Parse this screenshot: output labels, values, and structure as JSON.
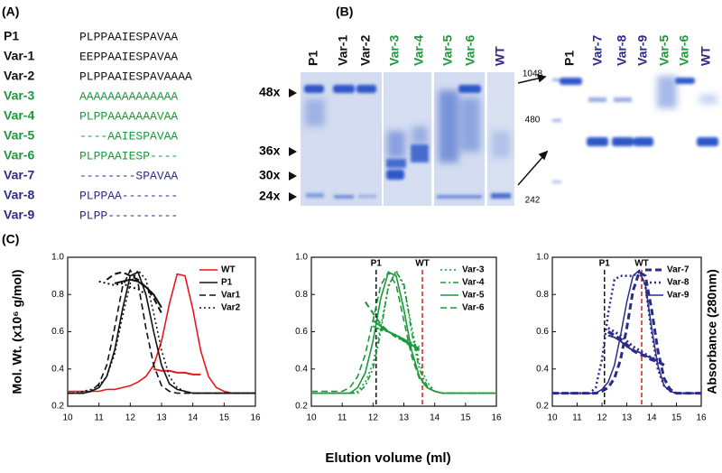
{
  "panel_a": {
    "label": "(A)",
    "rows": [
      {
        "name": "P1",
        "sequence": "PLPPAAIESPAVAA",
        "color": "#111111"
      },
      {
        "name": "Var-1",
        "sequence": "EEPPAAIESPAVAA",
        "color": "#111111"
      },
      {
        "name": "Var-2",
        "sequence": "PLPPAAIESPAVAAAA",
        "color": "#111111"
      },
      {
        "name": "Var-3",
        "sequence": "AAAAAAAAAAAAAA",
        "color": "#1a9a3a"
      },
      {
        "name": "Var-4",
        "sequence": "PLPPAAAAAAAVAA",
        "color": "#1a9a3a"
      },
      {
        "name": "Var-5",
        "sequence": "----AAIESPAVAA",
        "color": "#1a9a3a"
      },
      {
        "name": "Var-6",
        "sequence": "PLPPAAIESP----",
        "color": "#1a9a3a"
      },
      {
        "name": "Var-7",
        "sequence": "--------SPAVAA",
        "color": "#2b2b8c"
      },
      {
        "name": "Var-8",
        "sequence": "PLPPAA--------",
        "color": "#2b2b8c"
      },
      {
        "name": "Var-9",
        "sequence": "PLPP----------",
        "color": "#2b2b8c"
      }
    ]
  },
  "panel_b": {
    "label": "(B)",
    "left_lanes": [
      {
        "name": "P1",
        "color": "#111111"
      },
      {
        "name": "Var-1",
        "color": "#111111"
      },
      {
        "name": "Var-2",
        "color": "#111111"
      },
      {
        "name": "Var-3",
        "color": "#1a9a3a"
      },
      {
        "name": "Var-4",
        "color": "#1a9a3a"
      },
      {
        "name": "Var-5",
        "color": "#1a9a3a"
      },
      {
        "name": "Var-6",
        "color": "#1a9a3a"
      },
      {
        "name": "WT",
        "color": "#2b2b8c"
      }
    ],
    "right_lanes": [
      {
        "name": "P1",
        "color": "#111111"
      },
      {
        "name": "Var-7",
        "color": "#2b2b8c"
      },
      {
        "name": "Var-8",
        "color": "#2b2b8c"
      },
      {
        "name": "Var-9",
        "color": "#2b2b8c"
      },
      {
        "name": "Var-5",
        "color": "#1a9a3a"
      },
      {
        "name": "Var-6",
        "color": "#1a9a3a"
      },
      {
        "name": "WT",
        "color": "#2b2b8c"
      }
    ],
    "size_markers": [
      "48x",
      "36x",
      "30x",
      "24x"
    ],
    "ladder": [
      1048,
      480,
      242
    ]
  },
  "panel_c": {
    "label": "(C)",
    "y_label": "Mol. Wt. (x10⁶ g/mol)",
    "y2_label": "Absorbance (280nm)",
    "x_label": "Elution volume (ml)"
  },
  "chart_data": [
    {
      "type": "line",
      "x": [
        10,
        10.25,
        10.5,
        10.75,
        11,
        11.25,
        11.5,
        11.75,
        12,
        12.25,
        12.5,
        12.75,
        13,
        13.25,
        13.5,
        13.75,
        14,
        14.25,
        14.5,
        14.75,
        15,
        15.25,
        15.5,
        15.75,
        16
      ],
      "xlim": [
        10,
        16
      ],
      "xticks": [
        10,
        11,
        12,
        13,
        14,
        15,
        16
      ],
      "ylim": [
        0.2,
        1.0
      ],
      "yticks": [
        0.2,
        0.4,
        0.6,
        0.8,
        {
          "value": 1,
          "label": "1.0"
        }
      ],
      "legend": "upper right",
      "series": [
        {
          "name": "WT",
          "color": "#e8161b",
          "dash": "solid",
          "values": [
            0.28,
            0.28,
            0.28,
            0.28,
            0.28,
            0.29,
            0.29,
            0.3,
            0.31,
            0.33,
            0.36,
            0.42,
            0.55,
            0.75,
            0.91,
            0.9,
            0.72,
            0.5,
            0.36,
            0.3,
            0.28,
            0.27,
            0.27,
            0.27,
            0.27
          ],
          "mw_values": [
            null,
            null,
            null,
            null,
            null,
            null,
            null,
            null,
            null,
            null,
            null,
            0.4,
            0.39,
            0.39,
            0.38,
            0.38,
            0.37,
            0.37,
            null,
            null,
            null,
            null,
            null,
            null,
            null
          ]
        },
        {
          "name": "P1",
          "color": "#111111",
          "dash": "solid",
          "values": [
            0.27,
            0.27,
            0.27,
            0.28,
            0.3,
            0.36,
            0.5,
            0.72,
            0.9,
            0.92,
            0.8,
            0.6,
            0.42,
            0.32,
            0.29,
            0.28,
            0.27,
            0.27,
            0.27,
            0.27,
            0.27,
            0.27,
            0.27,
            0.27,
            0.27
          ],
          "mw_values": [
            null,
            null,
            null,
            null,
            null,
            null,
            0.86,
            0.87,
            0.88,
            0.87,
            0.84,
            0.8,
            0.73,
            null,
            null,
            null,
            null,
            null,
            null,
            null,
            null,
            null,
            null,
            null,
            null
          ]
        },
        {
          "name": "Var1",
          "color": "#111111",
          "dash": "dash",
          "values": [
            0.27,
            0.27,
            0.27,
            0.28,
            0.32,
            0.42,
            0.62,
            0.84,
            0.93,
            0.86,
            0.62,
            0.42,
            0.31,
            0.28,
            0.27,
            0.27,
            0.27,
            0.27,
            0.27,
            0.27,
            0.27,
            0.27,
            0.27,
            0.27,
            0.27
          ],
          "mw_values": [
            null,
            null,
            null,
            null,
            null,
            0.88,
            0.91,
            0.92,
            0.9,
            0.88,
            0.84,
            0.78,
            0.7,
            null,
            null,
            null,
            null,
            null,
            null,
            null,
            null,
            null,
            null,
            null,
            null
          ]
        },
        {
          "name": "Var2",
          "color": "#111111",
          "dash": "dot",
          "values": [
            0.27,
            0.27,
            0.28,
            0.29,
            0.31,
            0.36,
            0.48,
            0.68,
            0.86,
            0.93,
            0.88,
            0.7,
            0.5,
            0.36,
            0.3,
            0.28,
            0.27,
            0.27,
            0.27,
            0.27,
            0.27,
            0.27,
            0.27,
            0.27,
            0.27
          ],
          "mw_values": [
            null,
            null,
            null,
            null,
            0.87,
            0.86,
            0.85,
            0.86,
            0.84,
            0.83,
            0.8,
            null,
            null,
            null,
            null,
            null,
            null,
            null,
            null,
            null,
            null,
            null,
            null,
            null,
            null
          ]
        }
      ]
    },
    {
      "type": "line",
      "x": [
        10,
        10.25,
        10.5,
        10.75,
        11,
        11.25,
        11.5,
        11.75,
        12,
        12.25,
        12.5,
        12.75,
        13,
        13.25,
        13.5,
        13.75,
        14,
        14.25,
        14.5,
        14.75,
        15,
        15.25,
        15.5,
        15.75,
        16
      ],
      "xlim": [
        10,
        16
      ],
      "xticks": [
        10,
        11,
        12,
        13,
        14,
        15,
        16
      ],
      "ylim": [
        0.2,
        1.0
      ],
      "yticks": [
        0.2,
        0.4,
        0.6,
        0.8,
        {
          "value": 1,
          "label": "1.0"
        }
      ],
      "legend": "upper right",
      "reference_lines": [
        {
          "x": 12.1,
          "label": "P1",
          "color": "#111111"
        },
        {
          "x": 13.6,
          "label": "WT",
          "color": "#e8161b"
        }
      ],
      "series": [
        {
          "name": "Var-3",
          "color": "#1a9a3a",
          "dash": "dot",
          "values": [
            0.27,
            0.27,
            0.27,
            0.27,
            0.27,
            0.27,
            0.28,
            0.33,
            0.43,
            0.63,
            0.84,
            0.93,
            0.84,
            0.63,
            0.43,
            0.33,
            0.28,
            0.27,
            0.27,
            0.27,
            0.27,
            0.27,
            0.27,
            0.27,
            0.27
          ],
          "mw_values": [
            null,
            null,
            null,
            null,
            null,
            null,
            null,
            null,
            0.63,
            0.61,
            0.6,
            0.58,
            0.56,
            0.54,
            0.52,
            null,
            null,
            null,
            null,
            null,
            null,
            null,
            null,
            null,
            null
          ]
        },
        {
          "name": "Var-4",
          "color": "#1a9a3a",
          "dash": "dashdot",
          "values": [
            0.27,
            0.27,
            0.27,
            0.27,
            0.27,
            0.27,
            0.27,
            0.31,
            0.4,
            0.6,
            0.85,
            0.92,
            0.86,
            0.6,
            0.4,
            0.31,
            0.28,
            0.27,
            0.27,
            0.27,
            0.27,
            0.27,
            0.27,
            0.27,
            0.27
          ],
          "mw_values": [
            null,
            null,
            null,
            null,
            null,
            null,
            null,
            null,
            null,
            0.62,
            0.6,
            0.57,
            0.55,
            0.53,
            0.5,
            null,
            null,
            null,
            null,
            null,
            null,
            null,
            null,
            null,
            null
          ]
        },
        {
          "name": "Var-5",
          "color": "#1a9a3a",
          "dash": "solid",
          "values": [
            0.27,
            0.27,
            0.27,
            0.27,
            0.27,
            0.27,
            0.3,
            0.38,
            0.55,
            0.78,
            0.92,
            0.9,
            0.72,
            0.5,
            0.36,
            0.3,
            0.28,
            0.27,
            0.27,
            0.27,
            0.27,
            0.27,
            0.27,
            0.27,
            0.27
          ],
          "mw_values": [
            null,
            null,
            null,
            null,
            null,
            null,
            null,
            null,
            0.66,
            0.63,
            0.6,
            0.58,
            0.56,
            0.53,
            0.51,
            null,
            null,
            null,
            null,
            null,
            null,
            null,
            null,
            null,
            null
          ]
        },
        {
          "name": "Var-6",
          "color": "#1a9a3a",
          "dash": "dash",
          "values": [
            0.28,
            0.28,
            0.28,
            0.28,
            0.28,
            0.3,
            0.36,
            0.48,
            0.66,
            0.85,
            0.92,
            0.85,
            0.66,
            0.47,
            0.35,
            0.3,
            0.28,
            0.27,
            0.27,
            0.27,
            0.27,
            0.27,
            0.27,
            0.27,
            0.27
          ],
          "mw_values": [
            null,
            null,
            null,
            null,
            null,
            null,
            null,
            0.76,
            0.7,
            0.64,
            0.6,
            0.58,
            0.55,
            0.52,
            0.5,
            null,
            null,
            null,
            null,
            null,
            null,
            null,
            null,
            null,
            null
          ]
        }
      ]
    },
    {
      "type": "line",
      "x": [
        10,
        10.25,
        10.5,
        10.75,
        11,
        11.25,
        11.5,
        11.75,
        12,
        12.25,
        12.5,
        12.75,
        13,
        13.25,
        13.5,
        13.75,
        14,
        14.25,
        14.5,
        14.75,
        15,
        15.25,
        15.5,
        15.75,
        16
      ],
      "xlim": [
        10,
        16
      ],
      "xticks": [
        10,
        11,
        12,
        13,
        14,
        15,
        16
      ],
      "ylim": [
        0.2,
        1.0
      ],
      "yticks": [
        0.2,
        0.4,
        0.6,
        0.8,
        {
          "value": 1,
          "label": "1.0"
        }
      ],
      "legend": "upper right",
      "reference_lines": [
        {
          "x": 12.1,
          "label": "P1",
          "color": "#111111"
        },
        {
          "x": 13.6,
          "label": "WT",
          "color": "#e8161b"
        }
      ],
      "series": [
        {
          "name": "Var-7",
          "color": "#2b2b8c",
          "dash": "dash",
          "width": 3,
          "values": [
            0.27,
            0.27,
            0.27,
            0.27,
            0.27,
            0.27,
            0.27,
            0.27,
            0.28,
            0.3,
            0.35,
            0.45,
            0.62,
            0.82,
            0.92,
            0.9,
            0.72,
            0.5,
            0.35,
            0.29,
            0.27,
            0.27,
            0.27,
            0.27,
            0.27
          ],
          "mw_values": [
            null,
            null,
            null,
            null,
            null,
            null,
            null,
            null,
            null,
            0.6,
            0.58,
            0.56,
            0.53,
            0.5,
            0.48,
            0.47,
            0.45,
            0.44,
            0.42,
            null,
            null,
            null,
            null,
            null,
            null
          ]
        },
        {
          "name": "Var-8",
          "color": "#2b2b8c",
          "dash": "dot",
          "width": 2.5,
          "values": [
            0.27,
            0.27,
            0.27,
            0.27,
            0.27,
            0.27,
            0.27,
            0.3,
            0.45,
            0.7,
            0.88,
            0.9,
            0.9,
            0.9,
            0.92,
            0.85,
            0.6,
            0.4,
            0.31,
            0.28,
            0.27,
            0.27,
            0.27,
            0.27,
            0.27
          ],
          "mw_values": [
            null,
            null,
            null,
            null,
            null,
            null,
            null,
            null,
            null,
            0.62,
            0.6,
            0.58,
            0.55,
            0.52,
            0.5,
            0.48,
            0.46,
            0.45,
            null,
            null,
            null,
            null,
            null,
            null,
            null
          ]
        },
        {
          "name": "Var-9",
          "color": "#2b2b8c",
          "dash": "solid",
          "width": 1.5,
          "values": [
            0.27,
            0.27,
            0.27,
            0.27,
            0.27,
            0.27,
            0.27,
            0.27,
            0.29,
            0.33,
            0.42,
            0.58,
            0.76,
            0.9,
            0.93,
            0.85,
            0.62,
            0.42,
            0.31,
            0.28,
            0.27,
            0.27,
            0.27,
            0.27,
            0.27
          ],
          "mw_values": [
            null,
            null,
            null,
            null,
            null,
            null,
            null,
            null,
            null,
            0.58,
            0.57,
            0.55,
            0.52,
            0.5,
            0.49,
            0.47,
            0.46,
            0.44,
            null,
            null,
            null,
            null,
            null,
            null,
            null
          ]
        }
      ]
    }
  ]
}
